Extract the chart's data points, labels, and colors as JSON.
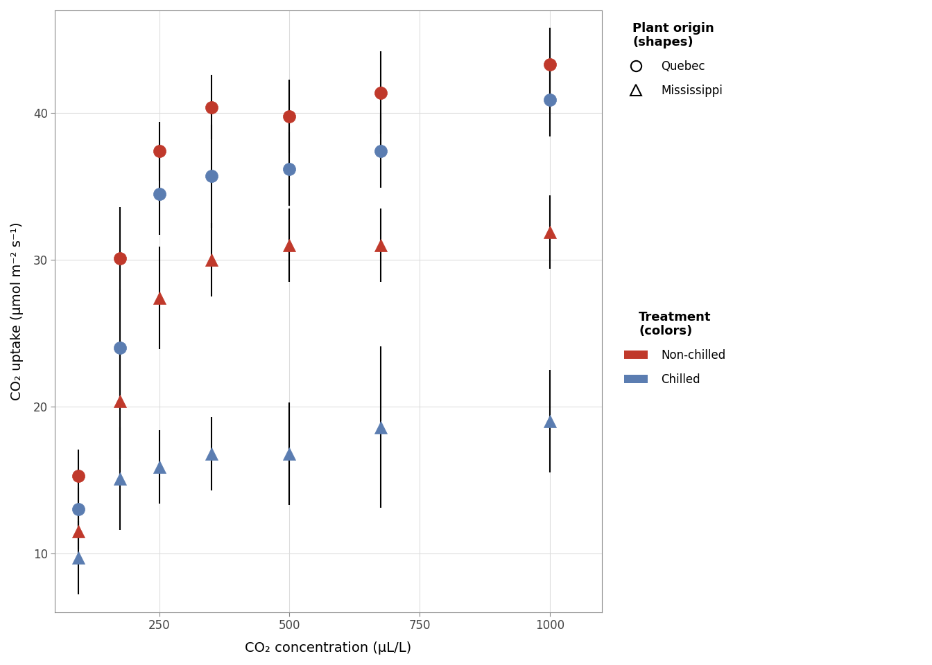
{
  "title": "",
  "xlabel": "CO₂ concentration (μL/L)",
  "ylabel": "CO₂ uptake (μmol m⁻² s⁻¹)",
  "background_color": "#ffffff",
  "panel_color": "#ffffff",
  "grid_color": "#dddddd",
  "red_color": "#C0392B",
  "blue_color": "#5B7DB1",
  "data": {
    "Quebec_Nonchilled": {
      "x": [
        95,
        175,
        250,
        350,
        500,
        675,
        1000
      ],
      "y": [
        15.3,
        30.1,
        37.4,
        40.4,
        39.8,
        41.4,
        43.3
      ],
      "yerr_lo": [
        1.8,
        3.5,
        2.0,
        2.2,
        2.5,
        2.8,
        2.5
      ],
      "yerr_hi": [
        1.8,
        3.5,
        2.0,
        2.2,
        2.5,
        2.8,
        2.5
      ],
      "marker": "o",
      "color": "#C0392B"
    },
    "Quebec_Chilled": {
      "x": [
        95,
        175,
        250,
        350,
        500,
        675,
        1000
      ],
      "y": [
        13.0,
        24.0,
        34.5,
        35.7,
        36.2,
        37.4,
        40.9
      ],
      "yerr_lo": [
        1.5,
        4.0,
        2.8,
        3.5,
        2.5,
        2.5,
        2.5
      ],
      "yerr_hi": [
        1.5,
        4.0,
        2.8,
        3.5,
        2.5,
        2.5,
        2.5
      ],
      "marker": "o",
      "color": "#5B7DB1"
    },
    "Mississippi_Nonchilled": {
      "x": [
        95,
        175,
        250,
        350,
        500,
        675,
        1000
      ],
      "y": [
        11.5,
        20.4,
        27.4,
        30.0,
        31.0,
        31.0,
        31.9
      ],
      "yerr_lo": [
        1.2,
        4.0,
        3.5,
        2.5,
        2.5,
        2.5,
        2.5
      ],
      "yerr_hi": [
        1.2,
        4.0,
        3.5,
        2.5,
        2.5,
        2.5,
        2.5
      ],
      "marker": "^",
      "color": "#C0392B"
    },
    "Mississippi_Chilled": {
      "x": [
        95,
        175,
        250,
        350,
        500,
        675,
        1000
      ],
      "y": [
        9.7,
        15.1,
        15.9,
        16.8,
        16.8,
        18.6,
        19.0
      ],
      "yerr_lo": [
        2.5,
        3.5,
        2.5,
        2.5,
        3.5,
        5.5,
        3.5
      ],
      "yerr_hi": [
        2.5,
        3.5,
        2.5,
        2.5,
        3.5,
        5.5,
        3.5
      ],
      "marker": "^",
      "color": "#5B7DB1"
    }
  },
  "xlim": [
    50,
    1100
  ],
  "ylim": [
    6,
    47
  ],
  "xticks": [
    250,
    500,
    750,
    1000
  ],
  "yticks": [
    10,
    20,
    30,
    40
  ],
  "markersize": 13,
  "linewidth": 1.5,
  "capsize": 0,
  "legend_title_shapes": "Plant origin\n(shapes)",
  "legend_title_colors": "Treatment\n(colors)",
  "legend_quebec": "Quebec",
  "legend_mississippi": "Mississippi",
  "legend_nonchilled": "Non-chilled",
  "legend_chilled": "Chilled"
}
